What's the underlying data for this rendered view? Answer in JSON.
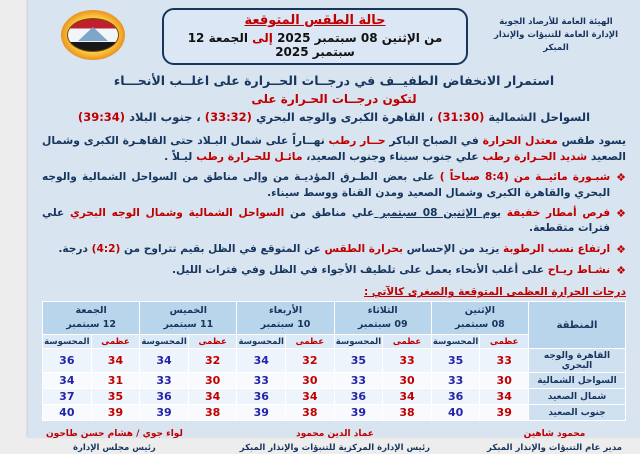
{
  "colors": {
    "doc_bg": "#d9e4f1",
    "navy": "#17365d",
    "red": "#c00000",
    "table_header_bg": "#b9d5ec"
  },
  "icons": {
    "bullet": "❖",
    "logo": "egypt-meteorological-authority-logo"
  },
  "header": {
    "org_line1": "الهيئة العامة للأرصاد الجوية",
    "org_line2": "الإدارة العامة للتنبؤات والإنذار المبكر",
    "title": "حالة الطقس المتوقعة",
    "date_segments": [
      {
        "t": "من الإثنين 08 سبتمبر 2025 ",
        "c": "black"
      },
      {
        "t": "إلى",
        "c": "red"
      },
      {
        "t": " الجمعة 12 سبتمبر 2025",
        "c": "black"
      }
    ]
  },
  "headline": {
    "line1": "استمرار الانخفاض الطفيــف في درجــات الحــرارة على اغلــب الأنحـــاء",
    "line2": "لتكون درجــات الحـرارة على",
    "line3_segments": [
      {
        "t": "السواحل الشمالية ",
        "c": "navy"
      },
      {
        "t": "(31:30)",
        "c": "red"
      },
      {
        "t": " ، القاهرة الكبرى والوجه البحري ",
        "c": "navy"
      },
      {
        "t": "(33:32)",
        "c": "red"
      },
      {
        "t": " ، جنوب البلاد ",
        "c": "navy"
      },
      {
        "t": "(39:34)",
        "c": "red"
      }
    ]
  },
  "paragraph_segments": [
    {
      "t": "يسود طقس ",
      "c": "navy"
    },
    {
      "t": "معتدل الحرارة ",
      "c": "red"
    },
    {
      "t": "في الصباح الباكر ",
      "c": "navy"
    },
    {
      "t": "حــار رطب ",
      "c": "red"
    },
    {
      "t": "نهــاراً على شمال البـلاد حتى القاهـرة الكبرى وشمال الصعيد ",
      "c": "navy"
    },
    {
      "t": "شديد الحـرارة رطب ",
      "c": "red"
    },
    {
      "t": "علي جنوب سيناء وجنوب الصعيد، ",
      "c": "navy"
    },
    {
      "t": "مائـل للحـرارة رطب ",
      "c": "red"
    },
    {
      "t": "ليـلاً .",
      "c": "navy"
    }
  ],
  "bullets": [
    {
      "segments": [
        {
          "t": "شبـورة مائيــة من (8:4 صباحاً ) ",
          "c": "red"
        },
        {
          "t": "على بعض الطـرق المؤديـة من وإلى مناطق من السواحل الشمالية والوجه البحري والقاهرة الكبرى وشمال الصعيد ومدن القناة ووسط سيناء.",
          "c": "navy"
        }
      ]
    },
    {
      "segments": [
        {
          "t": "فرص أمطار خفيفة ",
          "c": "red"
        },
        {
          "t": "يوم الإثنين 08 سبتمبر ",
          "c": "navy",
          "u": true
        },
        {
          "t": "علي مناطق من ",
          "c": "navy"
        },
        {
          "t": "السواحل الشمالية وشمال الوجه البحري ",
          "c": "red"
        },
        {
          "t": "علي فترات متقطعة.",
          "c": "navy"
        }
      ]
    },
    {
      "segments": [
        {
          "t": "ارتفاع نسب الرطوبة ",
          "c": "red"
        },
        {
          "t": "يزيد من الإحساس ",
          "c": "navy"
        },
        {
          "t": "بحرارة الطقس ",
          "c": "red"
        },
        {
          "t": "عن المتوقع في الظل بقيم تتراوح من ",
          "c": "navy"
        },
        {
          "t": "(4:2) ",
          "c": "red"
        },
        {
          "t": "درجة.",
          "c": "navy"
        }
      ]
    },
    {
      "segments": [
        {
          "t": "نشـاط ريـاح ",
          "c": "red"
        },
        {
          "t": "على أغلب الأنحاء يعمل على تلطيف الأجواء في الظل وفي فترات الليل.",
          "c": "navy"
        }
      ]
    }
  ],
  "table_label": "درجات الحرارة العظمى المتوقعة والصغرى كالآتي :",
  "chart_data": {
    "type": "table",
    "title": "درجات الحرارة العظمى المتوقعة والصغرى",
    "region_header": "المنطقة",
    "sub_max": "عظمى",
    "sub_felt": "المحسوسة",
    "days": [
      {
        "name": "الإثنين",
        "date": "08 سبتمبر"
      },
      {
        "name": "الثلاثاء",
        "date": "09 سبتمبر"
      },
      {
        "name": "الأربعاء",
        "date": "10 سبتمبر"
      },
      {
        "name": "الخميس",
        "date": "11 سبتمبر"
      },
      {
        "name": "الجمعة",
        "date": "12 سبتمبر"
      }
    ],
    "rows": [
      {
        "region": "القاهرة والوجه البحري",
        "values": [
          [
            33,
            35
          ],
          [
            33,
            35
          ],
          [
            32,
            34
          ],
          [
            32,
            34
          ],
          [
            34,
            36
          ]
        ]
      },
      {
        "region": "السواحل الشمالية",
        "values": [
          [
            30,
            33
          ],
          [
            30,
            33
          ],
          [
            30,
            33
          ],
          [
            30,
            33
          ],
          [
            31,
            34
          ]
        ]
      },
      {
        "region": "شمال الصعيد",
        "values": [
          [
            34,
            36
          ],
          [
            34,
            36
          ],
          [
            34,
            36
          ],
          [
            34,
            36
          ],
          [
            35,
            37
          ]
        ]
      },
      {
        "region": "جنوب الصعيد",
        "values": [
          [
            39,
            40
          ],
          [
            38,
            39
          ],
          [
            38,
            39
          ],
          [
            38,
            39
          ],
          [
            39,
            40
          ]
        ]
      }
    ]
  },
  "signatures": [
    {
      "name": "محمود شاهين",
      "title": "مدير عام التنبؤات والإنذار المبكر"
    },
    {
      "name": "عماد الدين محمود",
      "title": "رئيس الإدارة المركزية للتنبؤات والإنذار المبكر"
    },
    {
      "name": "لواء جوي / هشام حسن طاحون",
      "title": "رئيس مجلس الإدارة"
    }
  ]
}
